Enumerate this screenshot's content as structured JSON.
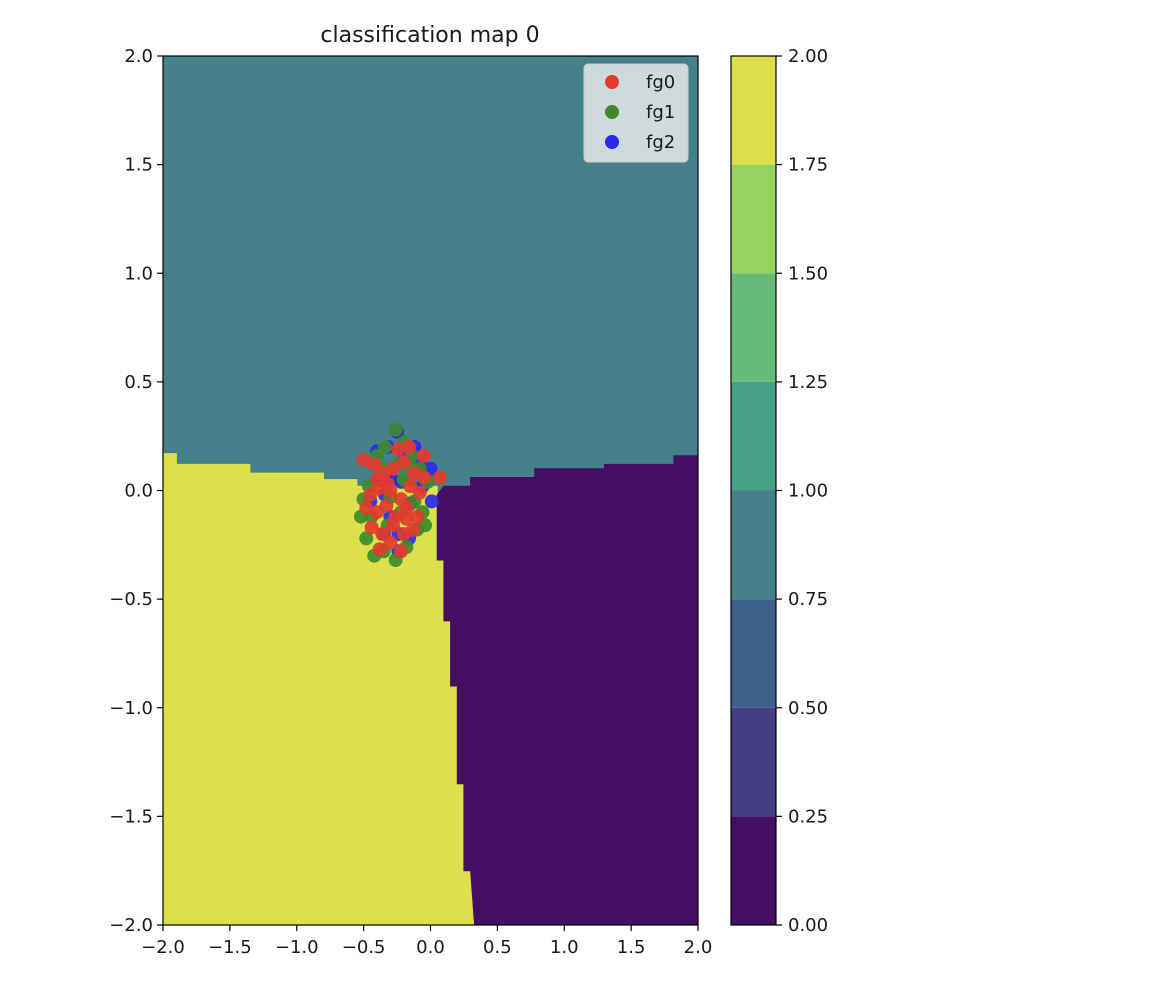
{
  "chart_data": {
    "type": "scatter",
    "title": "classification map 0",
    "xlabel": "",
    "ylabel": "",
    "xlim": [
      -2.0,
      2.0
    ],
    "ylim": [
      -2.0,
      2.0
    ],
    "xticks": [
      -2.0,
      -1.5,
      -1.0,
      -0.5,
      0.0,
      0.5,
      1.0,
      1.5,
      2.0
    ],
    "xtick_labels": [
      "−2.0",
      "−1.5",
      "−1.0",
      "−0.5",
      "0.0",
      "0.5",
      "1.0",
      "1.5",
      "2.0"
    ],
    "yticks": [
      2.0,
      1.5,
      1.0,
      0.5,
      0.0,
      -0.5,
      -1.0,
      -1.5,
      -2.0
    ],
    "ytick_labels": [
      "2.0",
      "1.5",
      "1.0",
      "0.5",
      "0.0",
      "−0.5",
      "−1.0",
      "−1.5",
      "−2.0"
    ],
    "grid": false,
    "legend_position": "top-right",
    "regions": [
      {
        "class": 2,
        "color": "#dce04b",
        "label": "left-lower region",
        "boundary": [
          [
            -2.0,
            0.17
          ],
          [
            -1.9,
            0.17
          ],
          [
            -1.9,
            0.12
          ],
          [
            -1.35,
            0.12
          ],
          [
            -1.35,
            0.08
          ],
          [
            -0.8,
            0.08
          ],
          [
            -0.8,
            0.05
          ],
          [
            -0.55,
            0.05
          ],
          [
            -0.55,
            0.02
          ],
          [
            0.05,
            0.02
          ],
          [
            0.05,
            -0.32
          ],
          [
            0.1,
            -0.32
          ],
          [
            0.1,
            -0.6
          ],
          [
            0.15,
            -0.6
          ],
          [
            0.15,
            -0.9
          ],
          [
            0.2,
            -0.9
          ],
          [
            0.2,
            -1.35
          ],
          [
            0.25,
            -1.35
          ],
          [
            0.25,
            -1.75
          ],
          [
            0.3,
            -1.75
          ],
          [
            0.33,
            -2.0
          ],
          [
            -2.0,
            -2.0
          ]
        ]
      },
      {
        "class": 0,
        "color": "#440f62",
        "label": "right-lower region",
        "boundary": [
          [
            0.05,
            -0.02
          ],
          [
            0.05,
            -0.32
          ],
          [
            0.1,
            -0.32
          ],
          [
            0.1,
            -0.6
          ],
          [
            0.15,
            -0.6
          ],
          [
            0.15,
            -0.9
          ],
          [
            0.2,
            -0.9
          ],
          [
            0.2,
            -1.35
          ],
          [
            0.25,
            -1.35
          ],
          [
            0.25,
            -1.75
          ],
          [
            0.3,
            -1.75
          ],
          [
            0.33,
            -2.0
          ],
          [
            2.0,
            -2.0
          ],
          [
            2.0,
            0.16
          ],
          [
            1.82,
            0.16
          ],
          [
            1.82,
            0.12
          ],
          [
            1.3,
            0.12
          ],
          [
            1.3,
            0.1
          ],
          [
            0.78,
            0.1
          ],
          [
            0.78,
            0.06
          ],
          [
            0.3,
            0.06
          ],
          [
            0.3,
            0.02
          ],
          [
            0.1,
            0.02
          ],
          [
            0.05,
            -0.02
          ]
        ]
      }
    ],
    "background_class": {
      "class": 1,
      "color": "#46808a"
    },
    "series": [
      {
        "name": "fg0",
        "color": "#e33b2f",
        "points": [
          [
            -0.5,
            0.14
          ],
          [
            -0.42,
            0.12
          ],
          [
            -0.35,
            0.08
          ],
          [
            -0.28,
            0.1
          ],
          [
            -0.2,
            0.13
          ],
          [
            -0.12,
            0.08
          ],
          [
            -0.05,
            0.06
          ],
          [
            0.07,
            0.06
          ],
          [
            -0.45,
            -0.02
          ],
          [
            -0.38,
            0.01
          ],
          [
            -0.3,
            0.0
          ],
          [
            -0.22,
            -0.04
          ],
          [
            -0.15,
            0.02
          ],
          [
            -0.08,
            -0.01
          ],
          [
            -0.48,
            -0.08
          ],
          [
            -0.4,
            -0.1
          ],
          [
            -0.33,
            -0.07
          ],
          [
            -0.26,
            -0.12
          ],
          [
            -0.18,
            -0.08
          ],
          [
            -0.1,
            -0.12
          ],
          [
            -0.44,
            -0.17
          ],
          [
            -0.36,
            -0.2
          ],
          [
            -0.28,
            -0.16
          ],
          [
            -0.2,
            -0.2
          ],
          [
            -0.13,
            -0.18
          ],
          [
            -0.38,
            -0.27
          ],
          [
            -0.3,
            -0.24
          ],
          [
            -0.22,
            -0.28
          ],
          [
            -0.16,
            0.2
          ],
          [
            -0.24,
            0.19
          ],
          [
            -0.32,
            0.03
          ],
          [
            -0.18,
            -0.13
          ],
          [
            -0.05,
            0.16
          ],
          [
            -0.4,
            0.05
          ]
        ]
      },
      {
        "name": "fg1",
        "color": "#3f8a2e",
        "points": [
          [
            -0.52,
            -0.12
          ],
          [
            -0.48,
            -0.22
          ],
          [
            -0.42,
            -0.3
          ],
          [
            -0.35,
            -0.28
          ],
          [
            -0.26,
            -0.32
          ],
          [
            -0.18,
            -0.26
          ],
          [
            -0.1,
            -0.18
          ],
          [
            -0.04,
            -0.16
          ],
          [
            -0.46,
            0.02
          ],
          [
            -0.4,
            0.16
          ],
          [
            -0.34,
            0.2
          ],
          [
            -0.26,
            0.28
          ],
          [
            -0.2,
            0.22
          ],
          [
            -0.14,
            0.16
          ],
          [
            -0.08,
            0.1
          ],
          [
            -0.02,
            0.04
          ],
          [
            -0.5,
            -0.04
          ],
          [
            -0.3,
            -0.03
          ],
          [
            -0.2,
            0.05
          ],
          [
            -0.12,
            -0.05
          ],
          [
            -0.06,
            -0.1
          ],
          [
            -0.44,
            -0.12
          ],
          [
            -0.36,
            0.1
          ],
          [
            -0.24,
            0.12
          ],
          [
            -0.15,
            0.11
          ],
          [
            -0.32,
            -0.16
          ],
          [
            -0.22,
            -0.1
          ]
        ]
      },
      {
        "name": "fg2",
        "color": "#2a2ae8",
        "points": [
          [
            -0.25,
            0.27
          ],
          [
            -0.4,
            0.18
          ],
          [
            -0.32,
            0.2
          ],
          [
            -0.12,
            0.2
          ],
          [
            -0.2,
            0.18
          ],
          [
            -0.08,
            0.12
          ],
          [
            -0.37,
            0.05
          ],
          [
            -0.3,
            0.06
          ],
          [
            0.0,
            0.1
          ],
          [
            -0.06,
            0.02
          ],
          [
            0.01,
            -0.05
          ],
          [
            -0.34,
            -0.02
          ],
          [
            -0.22,
            0.04
          ],
          [
            -0.3,
            -0.12
          ],
          [
            -0.24,
            -0.2
          ],
          [
            -0.35,
            -0.2
          ],
          [
            -0.24,
            -0.28
          ],
          [
            -0.16,
            -0.22
          ],
          [
            -0.45,
            -0.05
          ],
          [
            -0.15,
            -0.06
          ]
        ]
      }
    ],
    "colorbar": {
      "ticks": [
        0.0,
        0.25,
        0.5,
        0.75,
        1.0,
        1.25,
        1.5,
        1.75,
        2.0
      ],
      "tick_labels": [
        "0.00",
        "0.25",
        "0.50",
        "0.75",
        "1.00",
        "1.25",
        "1.50",
        "1.75",
        "2.00"
      ],
      "levels": [
        {
          "from": 0.0,
          "to": 0.25,
          "color": "#440f62"
        },
        {
          "from": 0.25,
          "to": 0.5,
          "color": "#433e85"
        },
        {
          "from": 0.5,
          "to": 0.75,
          "color": "#3d608a"
        },
        {
          "from": 0.75,
          "to": 1.0,
          "color": "#46808a"
        },
        {
          "from": 1.0,
          "to": 1.25,
          "color": "#49a089"
        },
        {
          "from": 1.25,
          "to": 1.5,
          "color": "#66bb79"
        },
        {
          "from": 1.5,
          "to": 1.75,
          "color": "#97d260"
        },
        {
          "from": 1.75,
          "to": 2.0,
          "color": "#dce04b"
        }
      ]
    }
  }
}
